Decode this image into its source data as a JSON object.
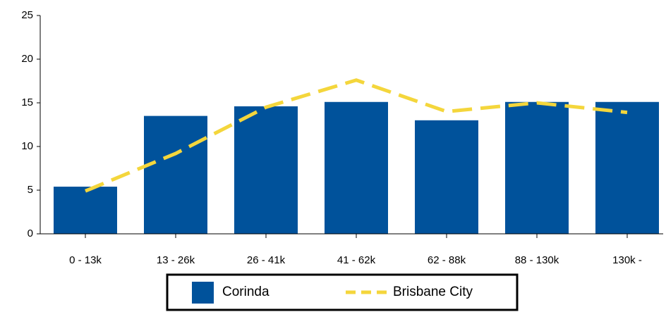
{
  "chart_data": {
    "type": "bar",
    "categories": [
      "0 - 13k",
      "13 - 26k",
      "26 - 41k",
      "41 - 62k",
      "62 - 88k",
      "88 - 130k",
      "130k -"
    ],
    "series": [
      {
        "name": "Corinda",
        "type": "bar",
        "color": "#00529b",
        "values": [
          5.4,
          13.5,
          14.6,
          15.1,
          13.0,
          15.1,
          15.1
        ]
      },
      {
        "name": "Brisbane City",
        "type": "line",
        "color": "#f4d63c",
        "values": [
          4.9,
          9.2,
          14.5,
          17.6,
          14.0,
          15.0,
          13.9
        ]
      }
    ],
    "ylim": [
      0,
      25
    ],
    "yticks": [
      0,
      5,
      10,
      15,
      20,
      25
    ],
    "grid": false,
    "legend": "bottom"
  }
}
